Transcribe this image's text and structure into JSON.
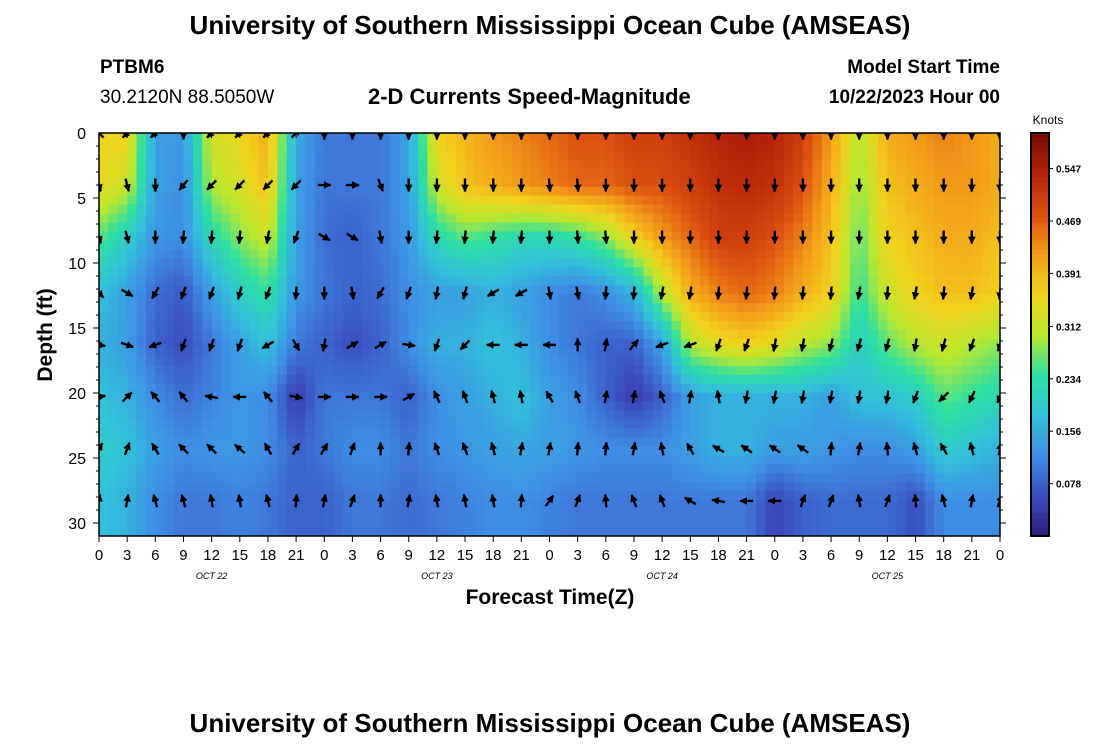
{
  "header": {
    "main_title": "University of Southern Mississippi Ocean Cube (AMSEAS)",
    "station": "PTBM6",
    "coordinates": "30.2120N  88.5050W",
    "subtitle": "2-D Currents Speed-Magnitude",
    "model_start_label": "Model Start Time",
    "model_start_value": "10/22/2023 Hour 00",
    "bottom_title": "University of Southern Mississippi Ocean Cube (AMSEAS)"
  },
  "chart_data": {
    "type": "heatmap",
    "title": "2-D Currents Speed-Magnitude",
    "xlabel": "Forecast Time(Z)",
    "ylabel": "Depth (ft)",
    "x_hours": [
      0,
      3,
      6,
      9,
      12,
      15,
      18,
      21,
      24,
      27,
      30,
      33,
      36,
      39,
      42,
      45,
      48,
      51,
      54,
      57,
      60,
      63,
      66,
      69,
      72,
      75,
      78,
      81,
      84,
      87,
      90,
      93,
      96
    ],
    "x_tick_labels": [
      "0",
      "3",
      "6",
      "9",
      "12",
      "15",
      "18",
      "21",
      "0",
      "3",
      "6",
      "9",
      "12",
      "15",
      "18",
      "21",
      "0",
      "3",
      "6",
      "9",
      "12",
      "15",
      "18",
      "21",
      "0",
      "3",
      "6",
      "9",
      "12",
      "15",
      "18",
      "21",
      "0"
    ],
    "date_labels": [
      {
        "label": "OCT 22",
        "hour": 12
      },
      {
        "label": "OCT 23",
        "hour": 36
      },
      {
        "label": "OCT 24",
        "hour": 60
      },
      {
        "label": "OCT 25",
        "hour": 84
      }
    ],
    "xlim": [
      0,
      96
    ],
    "y_ticks": [
      0,
      5,
      10,
      15,
      20,
      25,
      30
    ],
    "ylim": [
      0,
      31
    ],
    "depths": [
      0,
      4,
      8,
      12.3,
      16.3,
      20.3,
      24.3,
      28.3
    ],
    "colorbar": {
      "label": "Knots",
      "ticks": [
        "0.547",
        "0.469",
        "0.391",
        "0.312",
        "0.234",
        "0.156",
        "0.078"
      ],
      "tick_values": [
        0.547,
        0.469,
        0.391,
        0.312,
        0.234,
        0.156,
        0.078
      ],
      "vmin": 0.0,
      "vmax": 0.6,
      "colors": [
        "#2b1f7a",
        "#3b4cc0",
        "#3f8ee6",
        "#31c2d9",
        "#2ee0a0",
        "#b8e830",
        "#f2d21c",
        "#f39a1a",
        "#dc4e10",
        "#b42208",
        "#760b05"
      ]
    },
    "speed_grid": [
      [
        0.36,
        0.36,
        0.14,
        0.13,
        0.33,
        0.35,
        0.4,
        0.15,
        0.1,
        0.1,
        0.1,
        0.14,
        0.36,
        0.39,
        0.42,
        0.44,
        0.46,
        0.48,
        0.48,
        0.5,
        0.5,
        0.52,
        0.54,
        0.55,
        0.54,
        0.5,
        0.42,
        0.3,
        0.4,
        0.42,
        0.44,
        0.42,
        0.4
      ],
      [
        0.35,
        0.32,
        0.14,
        0.12,
        0.3,
        0.33,
        0.38,
        0.14,
        0.1,
        0.1,
        0.1,
        0.14,
        0.32,
        0.38,
        0.4,
        0.42,
        0.44,
        0.46,
        0.46,
        0.48,
        0.48,
        0.5,
        0.52,
        0.53,
        0.52,
        0.48,
        0.4,
        0.28,
        0.38,
        0.4,
        0.42,
        0.42,
        0.4
      ],
      [
        0.26,
        0.2,
        0.13,
        0.12,
        0.22,
        0.28,
        0.32,
        0.14,
        0.09,
        0.08,
        0.1,
        0.13,
        0.22,
        0.26,
        0.24,
        0.22,
        0.22,
        0.24,
        0.28,
        0.36,
        0.42,
        0.46,
        0.5,
        0.5,
        0.48,
        0.44,
        0.38,
        0.26,
        0.36,
        0.38,
        0.4,
        0.4,
        0.38
      ],
      [
        0.18,
        0.14,
        0.09,
        0.07,
        0.14,
        0.2,
        0.24,
        0.13,
        0.1,
        0.08,
        0.09,
        0.12,
        0.14,
        0.14,
        0.16,
        0.14,
        0.12,
        0.1,
        0.12,
        0.16,
        0.3,
        0.4,
        0.44,
        0.46,
        0.44,
        0.4,
        0.36,
        0.24,
        0.32,
        0.36,
        0.38,
        0.38,
        0.36
      ],
      [
        0.16,
        0.14,
        0.08,
        0.06,
        0.1,
        0.14,
        0.18,
        0.1,
        0.08,
        0.06,
        0.08,
        0.12,
        0.16,
        0.16,
        0.18,
        0.16,
        0.12,
        0.1,
        0.08,
        0.08,
        0.14,
        0.3,
        0.34,
        0.36,
        0.34,
        0.3,
        0.28,
        0.2,
        0.26,
        0.3,
        0.32,
        0.3,
        0.28
      ],
      [
        0.18,
        0.16,
        0.12,
        0.09,
        0.11,
        0.13,
        0.12,
        0.04,
        0.1,
        0.1,
        0.1,
        0.08,
        0.12,
        0.14,
        0.16,
        0.18,
        0.14,
        0.12,
        0.08,
        0.04,
        0.08,
        0.14,
        0.16,
        0.16,
        0.16,
        0.16,
        0.14,
        0.18,
        0.18,
        0.2,
        0.26,
        0.24,
        0.22
      ],
      [
        0.2,
        0.18,
        0.14,
        0.12,
        0.13,
        0.13,
        0.12,
        0.08,
        0.1,
        0.12,
        0.12,
        0.1,
        0.12,
        0.13,
        0.14,
        0.15,
        0.14,
        0.13,
        0.12,
        0.12,
        0.12,
        0.14,
        0.16,
        0.16,
        0.14,
        0.14,
        0.13,
        0.12,
        0.12,
        0.14,
        0.2,
        0.18,
        0.16
      ],
      [
        0.18,
        0.16,
        0.12,
        0.1,
        0.1,
        0.11,
        0.1,
        0.08,
        0.08,
        0.1,
        0.1,
        0.09,
        0.1,
        0.11,
        0.12,
        0.12,
        0.11,
        0.1,
        0.1,
        0.1,
        0.1,
        0.1,
        0.1,
        0.1,
        0.05,
        0.08,
        0.09,
        0.09,
        0.09,
        0.06,
        0.12,
        0.12,
        0.12
      ]
    ],
    "arrow_dirs_deg": [
      [
        315,
        225,
        225,
        180,
        225,
        225,
        225,
        45,
        180,
        180,
        180,
        180,
        180,
        180,
        180,
        180,
        180,
        180,
        180,
        180,
        180,
        180,
        180,
        180,
        180,
        180,
        180,
        180,
        180,
        180,
        180,
        180,
        180
      ],
      [
        165,
        165,
        180,
        220,
        225,
        225,
        225,
        225,
        90,
        90,
        160,
        180,
        180,
        180,
        180,
        180,
        175,
        175,
        180,
        180,
        180,
        180,
        180,
        180,
        180,
        180,
        180,
        180,
        180,
        180,
        180,
        180,
        180
      ],
      [
        165,
        165,
        180,
        185,
        185,
        185,
        190,
        200,
        120,
        120,
        170,
        180,
        185,
        185,
        185,
        185,
        180,
        175,
        175,
        180,
        180,
        180,
        180,
        180,
        180,
        180,
        180,
        180,
        180,
        180,
        180,
        180,
        180
      ],
      [
        135,
        120,
        210,
        200,
        200,
        195,
        200,
        185,
        180,
        170,
        210,
        200,
        190,
        195,
        240,
        240,
        170,
        170,
        185,
        185,
        190,
        190,
        185,
        185,
        185,
        185,
        185,
        190,
        185,
        190,
        185,
        190,
        185
      ],
      [
        100,
        110,
        250,
        200,
        200,
        200,
        240,
        150,
        190,
        60,
        60,
        100,
        200,
        225,
        270,
        270,
        270,
        0,
        10,
        40,
        250,
        250,
        200,
        200,
        190,
        190,
        195,
        195,
        195,
        190,
        195,
        200,
        200
      ],
      [
        80,
        45,
        320,
        320,
        280,
        270,
        320,
        100,
        90,
        90,
        90,
        60,
        335,
        340,
        345,
        350,
        330,
        340,
        10,
        10,
        340,
        10,
        350,
        190,
        190,
        190,
        190,
        190,
        190,
        200,
        225,
        205,
        205
      ],
      [
        30,
        20,
        330,
        315,
        315,
        310,
        330,
        30,
        30,
        20,
        0,
        5,
        340,
        340,
        345,
        10,
        10,
        5,
        5,
        10,
        350,
        330,
        300,
        305,
        305,
        305,
        5,
        10,
        355,
        345,
        330,
        345,
        10
      ],
      [
        10,
        10,
        345,
        345,
        350,
        350,
        345,
        5,
        10,
        20,
        0,
        10,
        350,
        350,
        350,
        5,
        35,
        20,
        355,
        340,
        340,
        300,
        280,
        270,
        270,
        20,
        20,
        350,
        20,
        355,
        345,
        10,
        20
      ]
    ]
  }
}
